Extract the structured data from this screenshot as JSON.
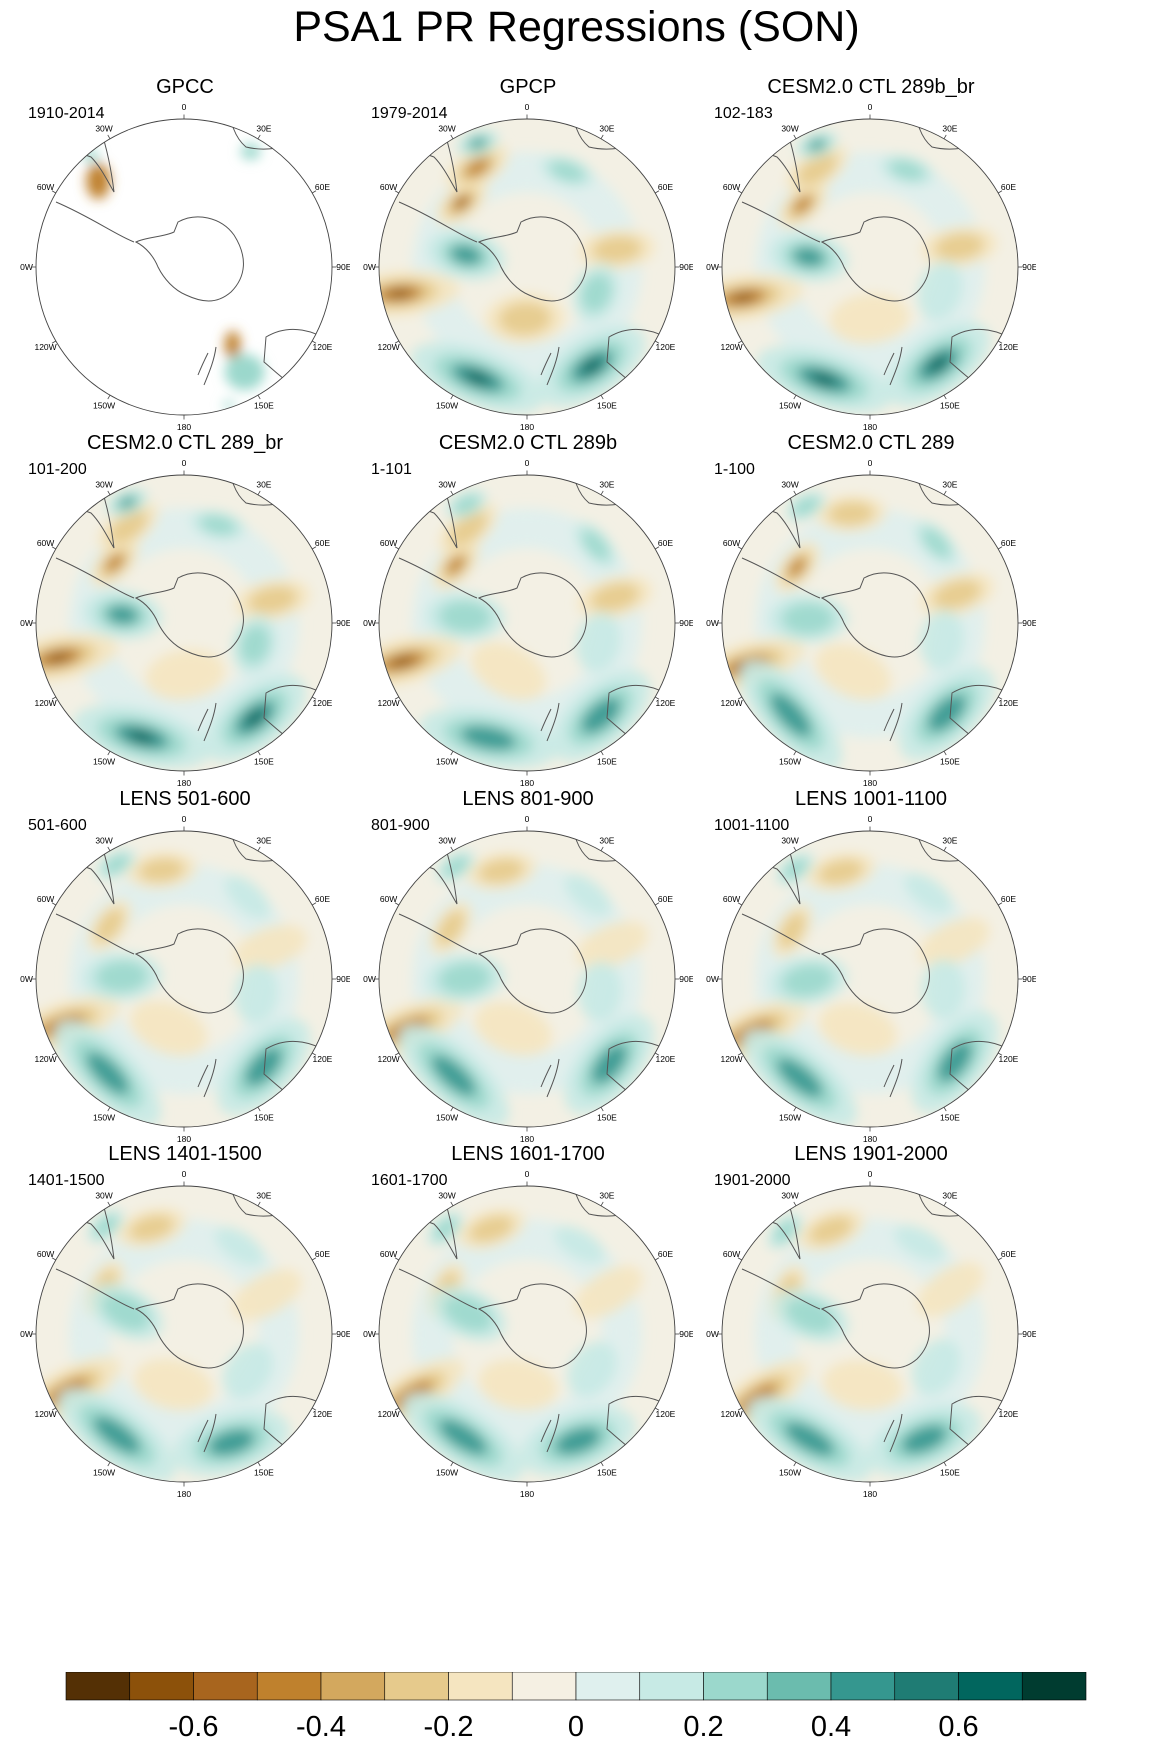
{
  "figure": {
    "title": "PSA1 PR Regressions (SON)",
    "longitude_labels": [
      "0",
      "30E",
      "60E",
      "90E",
      "120E",
      "150E",
      "180",
      "150W",
      "120W",
      "90W",
      "60W",
      "30W"
    ]
  },
  "panels": [
    {
      "title": "GPCC",
      "period": "1910-2014",
      "kind": "obs_land",
      "strength": 0.8
    },
    {
      "title": "GPCP",
      "period": "1979-2014",
      "kind": "full",
      "strength": 1.1
    },
    {
      "title": "CESM2.0 CTL 289b_br",
      "period": "102-183",
      "kind": "full",
      "strength": 0.85
    },
    {
      "title": "CESM2.0 CTL 289_br",
      "period": "101-200",
      "kind": "full",
      "strength": 0.9
    },
    {
      "title": "CESM2.0 CTL 289b",
      "period": "1-101",
      "kind": "full",
      "strength": 0.75
    },
    {
      "title": "CESM2.0 CTL 289",
      "period": "1-100",
      "kind": "full",
      "strength": 0.75
    },
    {
      "title": "LENS 501-600",
      "period": "501-600",
      "kind": "full",
      "strength": 0.6
    },
    {
      "title": "LENS 801-900",
      "period": "801-900",
      "kind": "full",
      "strength": 0.65
    },
    {
      "title": "LENS 1001-1100",
      "period": "1001-1100",
      "kind": "full",
      "strength": 0.7
    },
    {
      "title": "LENS 1401-1500",
      "period": "1401-1500",
      "kind": "full",
      "strength": 0.6
    },
    {
      "title": "LENS 1601-1700",
      "period": "1601-1700",
      "kind": "full",
      "strength": 0.6
    },
    {
      "title": "LENS 1901-2000",
      "period": "1901-2000",
      "kind": "full",
      "strength": 0.65
    }
  ],
  "colorbar": {
    "levels": [
      "-0.6",
      "-0.4",
      "-0.2",
      "0",
      "0.2",
      "0.4",
      "0.6"
    ],
    "colors": [
      "#543005",
      "#8c510a",
      "#a8651e",
      "#bf812d",
      "#d3a85e",
      "#e6ca8c",
      "#f5e5c0",
      "#f5f0e3",
      "#dff0ee",
      "#c7eae5",
      "#9bd8cc",
      "#6bbcae",
      "#35978f",
      "#1f7c74",
      "#01665e",
      "#003c30"
    ]
  }
}
